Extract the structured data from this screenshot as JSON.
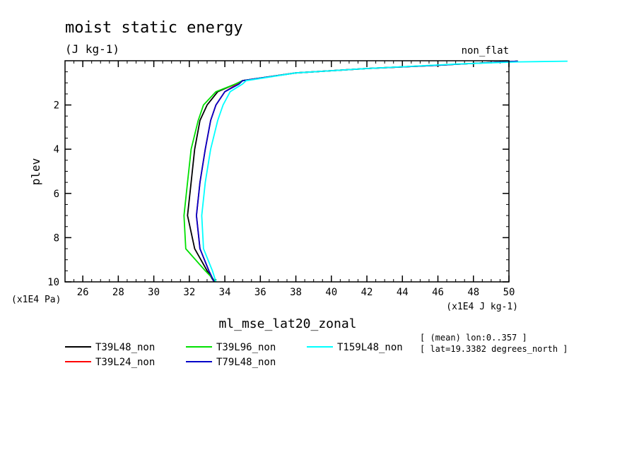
{
  "chart_data": {
    "type": "line",
    "title": "moist static energy",
    "units": "(J kg-1)",
    "corner_label": "non_flat",
    "ylabel": "plev",
    "y_unit": "(x1E4 Pa)",
    "x_unit": "(x1E4 J kg-1)",
    "xlabel": "ml_mse_lat20_zonal",
    "info_lines": [
      "[ (mean) lon:0..357 ]",
      "[ lat=19.3382 degrees_north ]"
    ],
    "xlim": [
      25,
      50
    ],
    "ylim": [
      0,
      10
    ],
    "y_inverted": true,
    "x_ticks": [
      26,
      28,
      30,
      32,
      34,
      36,
      38,
      40,
      42,
      44,
      46,
      48,
      50
    ],
    "y_ticks": [
      2,
      4,
      6,
      8,
      10
    ],
    "grid": false,
    "legend_placement": "below",
    "series": [
      {
        "name": "T39L48_non",
        "color": "#000000",
        "x": [
          33.4,
          33.0,
          32.3,
          31.9,
          32.1,
          32.3,
          32.6,
          33.0,
          33.6,
          34.6,
          35.0,
          38.0,
          42.0,
          46.0,
          50.5
        ],
        "y": [
          10.0,
          9.5,
          8.5,
          7.0,
          5.5,
          4.0,
          2.7,
          2.0,
          1.4,
          1.05,
          0.9,
          0.55,
          0.35,
          0.2,
          0.02
        ]
      },
      {
        "name": "T39L24_non",
        "color": "#ff0000",
        "x": [
          33.4,
          33.1,
          32.6,
          32.4,
          32.6,
          32.9,
          33.2,
          33.5,
          34.0,
          34.7,
          35.0,
          38.0,
          42.0,
          46.0,
          50.5
        ],
        "y": [
          10.0,
          9.5,
          8.5,
          7.0,
          5.5,
          4.0,
          2.7,
          2.0,
          1.4,
          1.05,
          0.9,
          0.55,
          0.35,
          0.2,
          0.02
        ]
      },
      {
        "name": "T39L96_non",
        "color": "#00e000",
        "x": [
          33.5,
          32.9,
          31.8,
          31.7,
          31.9,
          32.1,
          32.5,
          32.8,
          33.5,
          34.6,
          35.0,
          38.0,
          42.0,
          46.0,
          50.5
        ],
        "y": [
          10.0,
          9.5,
          8.5,
          7.0,
          5.5,
          4.0,
          2.7,
          2.0,
          1.4,
          1.05,
          0.9,
          0.55,
          0.35,
          0.2,
          0.02
        ]
      },
      {
        "name": "T79L48_non",
        "color": "#0000c8",
        "x": [
          33.4,
          33.1,
          32.6,
          32.4,
          32.6,
          32.9,
          33.2,
          33.5,
          34.0,
          34.8,
          35.0,
          38.0,
          42.0,
          46.0,
          50.5
        ],
        "y": [
          10.0,
          9.5,
          8.5,
          7.0,
          5.5,
          4.0,
          2.7,
          2.0,
          1.4,
          1.05,
          0.9,
          0.55,
          0.35,
          0.2,
          0.02
        ]
      },
      {
        "name": "T159L48_non",
        "color": "#00ffff",
        "x": [
          33.5,
          33.3,
          32.8,
          32.7,
          32.9,
          33.2,
          33.6,
          33.9,
          34.3,
          35.0,
          35.2,
          38.0,
          42.0,
          47.0,
          50.5,
          53.3
        ],
        "y": [
          10.0,
          9.5,
          8.5,
          7.0,
          5.5,
          4.0,
          2.7,
          2.0,
          1.4,
          1.05,
          0.9,
          0.55,
          0.35,
          0.15,
          0.05,
          0.02
        ]
      }
    ]
  }
}
